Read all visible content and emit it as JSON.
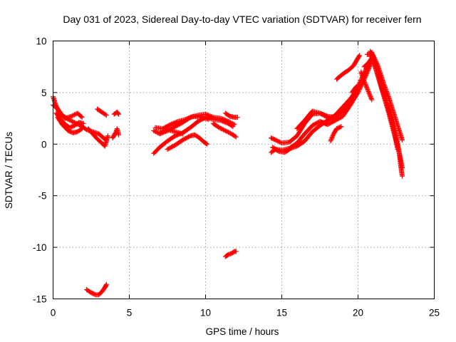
{
  "chart_data": {
    "type": "scatter",
    "title": "Day 031 of 2023, Sidereal Day-to-day VTEC variation (SDTVAR) for receiver fern",
    "xlabel": "GPS time / hours",
    "ylabel": "SDTVAR / TECUs",
    "xlim": [
      0,
      25
    ],
    "ylim": [
      -15,
      10
    ],
    "xticks": [
      0,
      5,
      10,
      15,
      20,
      25
    ],
    "yticks": [
      -15,
      -10,
      -5,
      0,
      5,
      10
    ],
    "xtick_labels": [
      "0",
      "5",
      "10",
      "15",
      "20",
      "25"
    ],
    "ytick_labels": [
      "-15",
      "-10",
      "-5",
      "0",
      "5",
      "10"
    ],
    "grid": true,
    "marker": "+",
    "series": [
      {
        "name": "SDTVAR",
        "color": "#ff0000",
        "tracks": [
          [
            [
              0.0,
              3.8
            ],
            [
              0.3,
              3.4
            ],
            [
              0.6,
              2.8
            ],
            [
              1.0,
              2.4
            ],
            [
              1.4,
              2.1
            ],
            [
              1.8,
              1.8
            ],
            [
              2.2,
              1.4
            ],
            [
              2.6,
              1.2
            ],
            [
              3.0,
              1.0
            ],
            [
              3.3,
              0.6
            ],
            [
              3.5,
              0.4
            ]
          ],
          [
            [
              0.0,
              4.6
            ],
            [
              0.2,
              3.7
            ],
            [
              0.5,
              2.9
            ],
            [
              0.8,
              2.5
            ],
            [
              1.2,
              2.7
            ],
            [
              1.6,
              3.0
            ],
            [
              1.9,
              2.6
            ]
          ],
          [
            [
              0.2,
              3.0
            ],
            [
              0.5,
              2.4
            ],
            [
              0.8,
              1.9
            ],
            [
              1.1,
              1.6
            ],
            [
              1.4,
              1.8
            ],
            [
              1.7,
              2.1
            ],
            [
              2.0,
              2.0
            ]
          ],
          [
            [
              0.3,
              2.6
            ],
            [
              0.6,
              1.9
            ],
            [
              1.0,
              1.3
            ],
            [
              1.3,
              1.1
            ],
            [
              1.6,
              1.2
            ],
            [
              1.9,
              1.5
            ]
          ],
          [
            [
              2.3,
              1.5
            ],
            [
              2.6,
              1.0
            ],
            [
              2.9,
              0.5
            ],
            [
              3.2,
              0.1
            ],
            [
              3.4,
              -0.2
            ],
            [
              3.5,
              0.3
            ],
            [
              3.6,
              0.8
            ]
          ],
          [
            [
              2.9,
              3.4
            ],
            [
              3.2,
              3.1
            ],
            [
              3.5,
              2.8
            ]
          ],
          [
            [
              3.9,
              0.6
            ],
            [
              4.1,
              1.1
            ],
            [
              4.2,
              1.5
            ],
            [
              4.3,
              0.9
            ]
          ],
          [
            [
              4.0,
              2.9
            ],
            [
              4.2,
              3.1
            ],
            [
              4.3,
              2.9
            ]
          ],
          [
            [
              2.2,
              -14.1
            ],
            [
              2.5,
              -14.4
            ],
            [
              2.8,
              -14.6
            ],
            [
              3.0,
              -14.6
            ],
            [
              3.2,
              -14.3
            ],
            [
              3.4,
              -13.9
            ],
            [
              3.5,
              -13.6
            ]
          ],
          [
            [
              6.6,
              -0.9
            ],
            [
              7.0,
              -0.3
            ],
            [
              7.5,
              0.3
            ],
            [
              8.0,
              0.8
            ],
            [
              8.5,
              1.1
            ],
            [
              9.0,
              1.6
            ],
            [
              9.5,
              2.2
            ],
            [
              10.0,
              2.6
            ],
            [
              10.5,
              2.4
            ],
            [
              11.0,
              2.3
            ],
            [
              11.5,
              2.0
            ],
            [
              11.8,
              1.7
            ]
          ],
          [
            [
              6.6,
              1.3
            ],
            [
              7.0,
              1.0
            ],
            [
              7.5,
              1.3
            ],
            [
              8.0,
              1.7
            ],
            [
              8.5,
              2.1
            ],
            [
              9.0,
              2.6
            ],
            [
              9.5,
              2.8
            ],
            [
              10.0,
              2.9
            ],
            [
              10.5,
              2.6
            ],
            [
              11.0,
              2.5
            ],
            [
              11.5,
              2.2
            ],
            [
              11.9,
              1.9
            ]
          ],
          [
            [
              6.7,
              1.6
            ],
            [
              7.2,
              1.5
            ],
            [
              7.7,
              1.9
            ],
            [
              8.2,
              2.2
            ],
            [
              8.7,
              2.4
            ],
            [
              9.2,
              2.7
            ],
            [
              9.7,
              2.6
            ],
            [
              10.2,
              2.4
            ]
          ],
          [
            [
              7.0,
              1.1
            ],
            [
              7.5,
              1.4
            ],
            [
              8.0,
              1.2
            ],
            [
              8.5,
              1.0
            ]
          ],
          [
            [
              7.5,
              -0.5
            ],
            [
              8.0,
              -0.1
            ],
            [
              8.5,
              0.4
            ],
            [
              9.0,
              0.8
            ],
            [
              9.3,
              0.9
            ],
            [
              9.6,
              0.6
            ],
            [
              9.9,
              0.2
            ],
            [
              10.1,
              0.0
            ]
          ],
          [
            [
              10.5,
              2.0
            ],
            [
              10.9,
              1.6
            ],
            [
              11.3,
              1.3
            ],
            [
              11.7,
              1.0
            ],
            [
              12.0,
              0.7
            ]
          ],
          [
            [
              11.3,
              3.0
            ],
            [
              11.6,
              2.7
            ],
            [
              11.9,
              2.6
            ],
            [
              12.1,
              2.6
            ]
          ],
          [
            [
              11.3,
              -10.9
            ],
            [
              11.5,
              -10.7
            ],
            [
              11.7,
              -10.6
            ],
            [
              11.9,
              -10.4
            ],
            [
              12.0,
              -10.4
            ]
          ],
          [
            [
              14.3,
              -0.8
            ],
            [
              14.6,
              -0.5
            ],
            [
              15.0,
              -0.6
            ],
            [
              15.5,
              -0.4
            ],
            [
              16.0,
              0.1
            ],
            [
              16.5,
              1.0
            ],
            [
              17.0,
              1.8
            ],
            [
              17.5,
              2.2
            ],
            [
              17.9,
              2.0
            ]
          ],
          [
            [
              14.3,
              0.6
            ],
            [
              14.6,
              0.4
            ],
            [
              15.0,
              0.1
            ],
            [
              15.5,
              0.2
            ],
            [
              16.0,
              0.8
            ],
            [
              16.5,
              2.0
            ],
            [
              17.0,
              2.9
            ],
            [
              17.5,
              3.0
            ],
            [
              18.0,
              2.6
            ],
            [
              18.4,
              2.4
            ]
          ],
          [
            [
              14.4,
              -0.3
            ],
            [
              14.8,
              -0.7
            ],
            [
              15.2,
              -0.8
            ],
            [
              15.6,
              -0.4
            ],
            [
              16.0,
              -0.2
            ],
            [
              16.5,
              0.3
            ],
            [
              17.0,
              1.2
            ],
            [
              17.5,
              1.8
            ],
            [
              18.0,
              2.3
            ],
            [
              18.5,
              2.8
            ],
            [
              19.0,
              3.6
            ],
            [
              19.5,
              4.4
            ],
            [
              19.9,
              5.2
            ]
          ],
          [
            [
              16.0,
              1.5
            ],
            [
              16.5,
              2.3
            ],
            [
              17.0,
              3.2
            ],
            [
              17.5,
              3.0
            ],
            [
              18.0,
              2.7
            ],
            [
              18.5,
              2.6
            ],
            [
              19.0,
              3.2
            ],
            [
              19.5,
              4.2
            ],
            [
              20.0,
              5.6
            ],
            [
              20.5,
              7.2
            ],
            [
              20.9,
              8.4
            ]
          ],
          [
            [
              17.5,
              2.2
            ],
            [
              18.0,
              1.9
            ],
            [
              18.5,
              2.3
            ],
            [
              19.0,
              2.7
            ],
            [
              19.5,
              3.8
            ],
            [
              20.0,
              5.0
            ],
            [
              20.5,
              6.6
            ],
            [
              20.9,
              8.0
            ]
          ],
          [
            [
              18.2,
              0.3
            ],
            [
              18.4,
              1.0
            ],
            [
              18.6,
              1.5
            ],
            [
              18.9,
              1.7
            ]
          ],
          [
            [
              18.6,
              6.3
            ],
            [
              19.0,
              6.8
            ],
            [
              19.4,
              7.2
            ],
            [
              19.7,
              7.6
            ],
            [
              19.9,
              8.1
            ],
            [
              20.1,
              8.6
            ]
          ],
          [
            [
              19.6,
              5.0
            ],
            [
              19.9,
              5.6
            ]
          ],
          [
            [
              20.4,
              7.5
            ],
            [
              20.7,
              7.9
            ],
            [
              20.9,
              8.3
            ]
          ],
          [
            [
              20.2,
              7.0
            ],
            [
              20.4,
              6.1
            ],
            [
              20.6,
              5.4
            ],
            [
              20.9,
              4.3
            ]
          ],
          [
            [
              20.9,
              8.9
            ],
            [
              21.3,
              7.6
            ],
            [
              21.7,
              5.8
            ],
            [
              22.0,
              4.6
            ],
            [
              22.3,
              3.2
            ],
            [
              22.6,
              1.8
            ],
            [
              22.9,
              0.4
            ]
          ],
          [
            [
              20.9,
              8.5
            ],
            [
              21.3,
              6.7
            ],
            [
              21.7,
              4.6
            ],
            [
              22.0,
              3.1
            ],
            [
              22.3,
              1.4
            ],
            [
              22.6,
              -0.2
            ],
            [
              22.8,
              -1.5
            ],
            [
              22.9,
              -2.3
            ]
          ],
          [
            [
              20.8,
              9.0
            ],
            [
              21.1,
              8.2
            ],
            [
              21.5,
              6.3
            ],
            [
              21.9,
              4.0
            ],
            [
              22.2,
              2.3
            ],
            [
              22.5,
              0.8
            ],
            [
              22.7,
              -0.8
            ],
            [
              22.8,
              -2.1
            ],
            [
              22.9,
              -3.1
            ]
          ],
          [
            [
              20.6,
              8.7
            ],
            [
              20.9,
              8.7
            ],
            [
              21.2,
              7.1
            ],
            [
              21.6,
              5.2
            ],
            [
              22.1,
              3.0
            ],
            [
              22.4,
              1.0
            ],
            [
              22.6,
              -0.5
            ]
          ]
        ]
      }
    ]
  }
}
